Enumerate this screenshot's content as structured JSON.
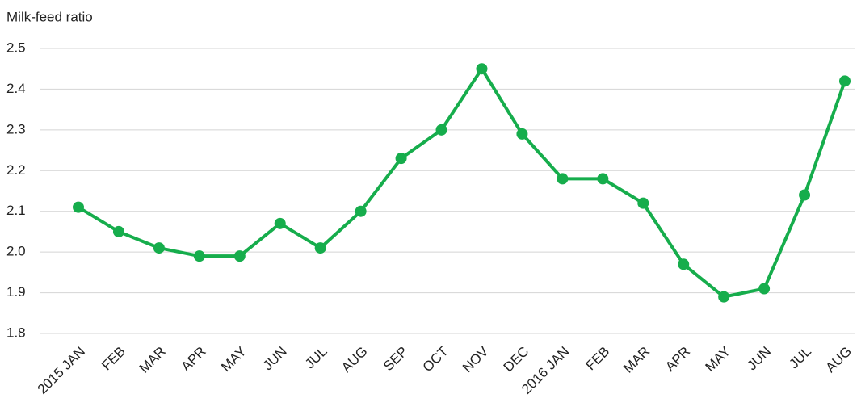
{
  "chart_data": {
    "type": "line",
    "y_axis_label": "Milk-feed ratio",
    "categories": [
      "2015 JAN",
      "FEB",
      "MAR",
      "APR",
      "MAY",
      "JUN",
      "JUL",
      "AUG",
      "SEP",
      "OCT",
      "NOV",
      "DEC",
      "2016 JAN",
      "FEB",
      "MAR",
      "APR",
      "MAY",
      "JUN",
      "JUL",
      "AUG"
    ],
    "series": [
      {
        "name": "Milk-feed ratio",
        "color": "#16ad4c",
        "values": [
          2.11,
          2.05,
          2.01,
          1.99,
          1.99,
          2.07,
          2.01,
          2.1,
          2.23,
          2.3,
          2.45,
          2.29,
          2.18,
          2.18,
          2.12,
          1.97,
          1.89,
          1.91,
          2.14,
          2.42
        ]
      }
    ],
    "ylim": [
      1.8,
      2.5
    ],
    "yticks": [
      1.8,
      1.9,
      {
        "value": 2,
        "label": "2.0"
      },
      2.1,
      2.2,
      2.3,
      2.4,
      2.5
    ],
    "grid": true
  }
}
